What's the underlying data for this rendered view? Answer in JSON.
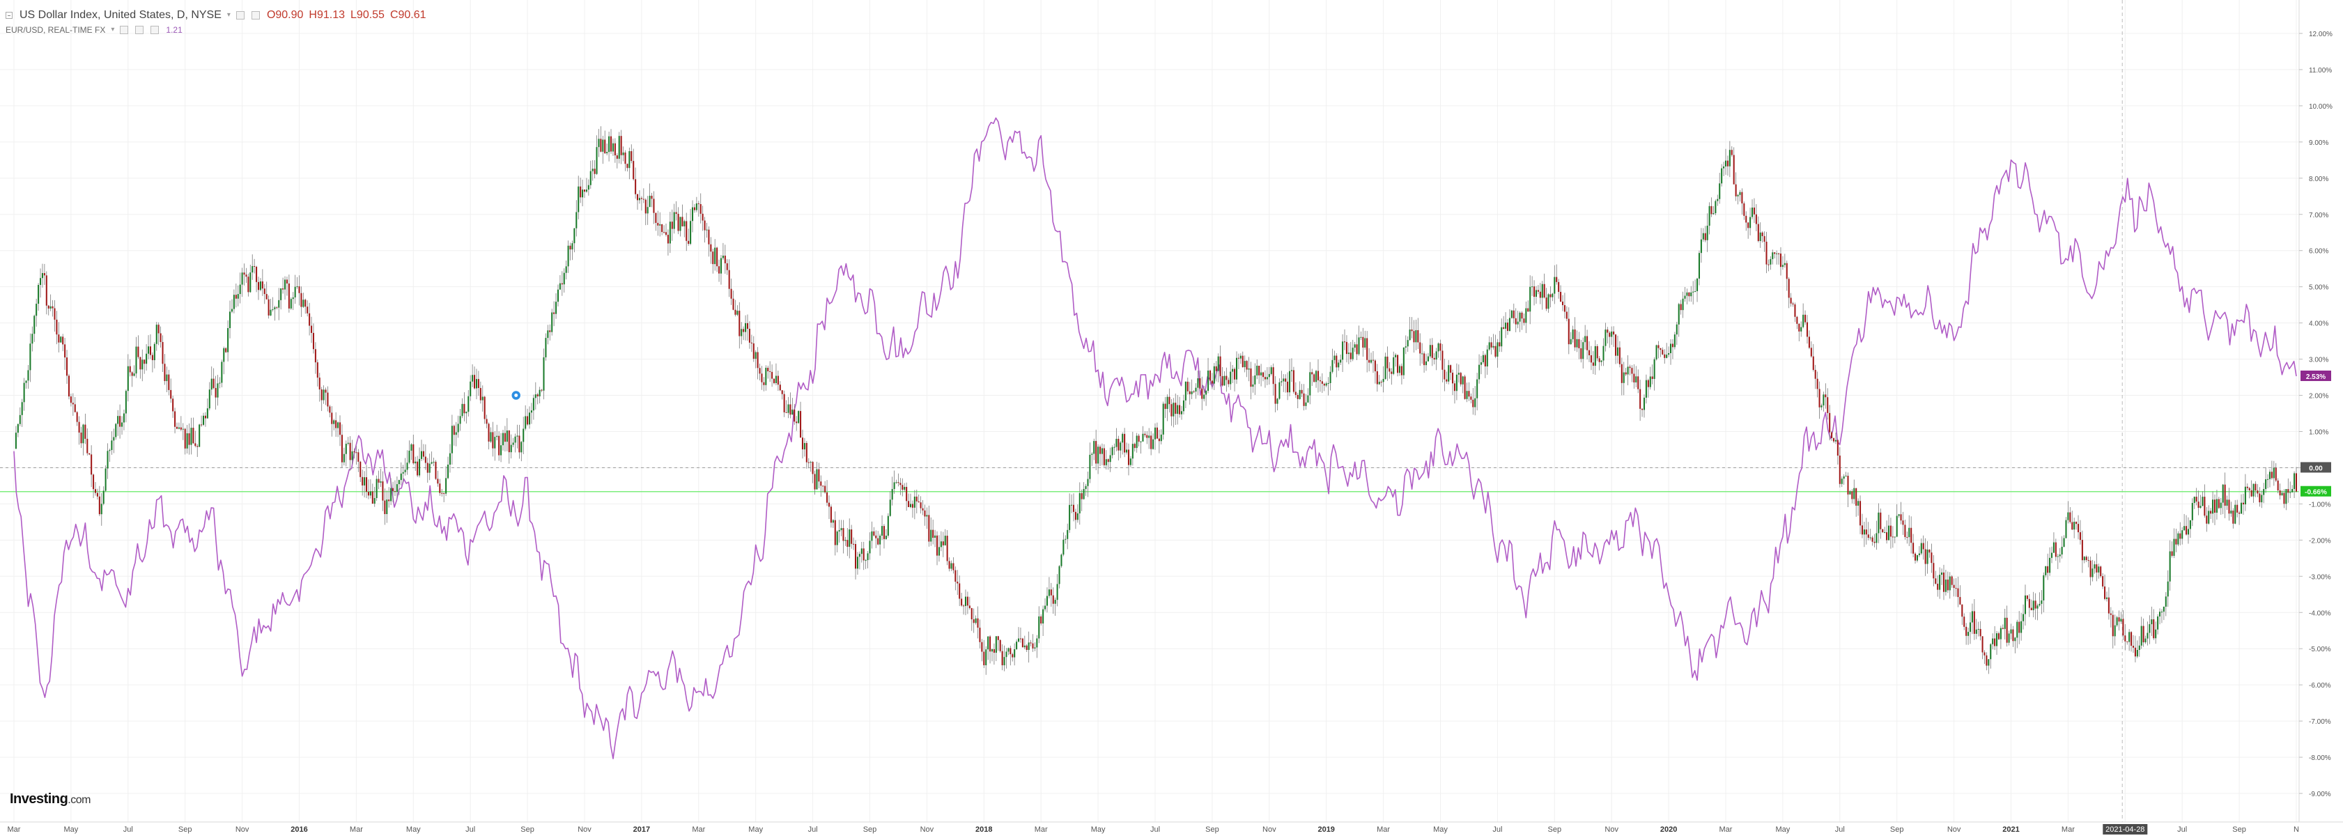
{
  "legend": {
    "main_series": {
      "name": "US Dollar Index, United States, D, NYSE",
      "open": "O90.90",
      "high": "H91.13",
      "low": "L90.55",
      "close": "C90.61"
    },
    "compare_series": {
      "name": "EUR/USD, REAL-TIME FX",
      "value": "1.21"
    }
  },
  "logo": {
    "text": "Investing",
    "suffix": ".com"
  },
  "colors": {
    "up_candle": "#1a7a2a",
    "down_candle": "#a01818",
    "compare_line": "#b05cc6",
    "last_price_line": "#7dee7d",
    "zero_line": "#999999",
    "grid": "#f0f0f0",
    "crosshair": "#bbbbbb",
    "compare_badge": "#8e2a8e",
    "last_badge": "#22c322",
    "zero_badge": "#555555"
  },
  "chart_data": {
    "type": "line",
    "percent_scale": true,
    "xlabel": "",
    "ylabel": "",
    "ylim": [
      -9.5,
      12.5
    ],
    "y_ticks": [
      "12.00%",
      "11.00%",
      "10.00%",
      "9.00%",
      "8.00%",
      "7.00%",
      "6.00%",
      "5.00%",
      "4.00%",
      "3.00%",
      "2.00%",
      "1.00%",
      "0.00",
      "-1.00%",
      "-2.00%",
      "-3.00%",
      "-4.00%",
      "-5.00%",
      "-6.00%",
      "-7.00%",
      "-8.00%",
      "-9.00%"
    ],
    "y_tick_values": [
      12,
      11,
      10,
      9,
      8,
      7,
      6,
      5,
      4,
      3,
      2,
      1,
      0,
      -1,
      -2,
      -3,
      -4,
      -5,
      -6,
      -7,
      -8,
      -9
    ],
    "x_ticks": [
      "Mar",
      "May",
      "Jul",
      "Sep",
      "Nov",
      "2016",
      "Mar",
      "May",
      "Jul",
      "Sep",
      "Nov",
      "2017",
      "Mar",
      "May",
      "Jul",
      "Sep",
      "Nov",
      "2018",
      "Mar",
      "May",
      "Jul",
      "Sep",
      "Nov",
      "2019",
      "Mar",
      "May",
      "Jul",
      "Sep",
      "Nov",
      "2020",
      "Mar",
      "May",
      "Jul",
      "Sep",
      "Nov",
      "2021",
      "Mar",
      "2021-04-28",
      "Jul",
      "Sep",
      "N"
    ],
    "x_start": "2015-03",
    "x_end": "2021-11",
    "crosshair_label": "2021-04-28",
    "badges": {
      "compare_last": "2.53%",
      "zero": "0.00",
      "main_last": "-0.66%"
    },
    "series": [
      {
        "name": "US Dollar Index, United States, D, NYSE",
        "style": "candlestick",
        "x": [
          "2015-03",
          "2015-04",
          "2015-05",
          "2015-06",
          "2015-07",
          "2015-08",
          "2015-09",
          "2015-10",
          "2015-11",
          "2015-12",
          "2016-01",
          "2016-02",
          "2016-03",
          "2016-04",
          "2016-05",
          "2016-06",
          "2016-07",
          "2016-08",
          "2016-09",
          "2016-10",
          "2016-11",
          "2016-12",
          "2017-01",
          "2017-02",
          "2017-03",
          "2017-04",
          "2017-05",
          "2017-06",
          "2017-07",
          "2017-08",
          "2017-09",
          "2017-10",
          "2017-11",
          "2017-12",
          "2018-01",
          "2018-02",
          "2018-03",
          "2018-04",
          "2018-05",
          "2018-06",
          "2018-07",
          "2018-08",
          "2018-09",
          "2018-10",
          "2018-11",
          "2018-12",
          "2019-01",
          "2019-02",
          "2019-03",
          "2019-04",
          "2019-05",
          "2019-06",
          "2019-07",
          "2019-08",
          "2019-09",
          "2019-10",
          "2019-11",
          "2019-12",
          "2020-01",
          "2020-02",
          "2020-03",
          "2020-04",
          "2020-05",
          "2020-06",
          "2020-07",
          "2020-08",
          "2020-09",
          "2020-10",
          "2020-11",
          "2020-12",
          "2021-01",
          "2021-02",
          "2021-03",
          "2021-04",
          "2021-05",
          "2021-06",
          "2021-07",
          "2021-08",
          "2021-09",
          "2021-10",
          "2021-11"
        ],
        "values": [
          0.5,
          5.5,
          2.0,
          -1.0,
          2.5,
          3.5,
          0.5,
          2.0,
          5.5,
          4.5,
          5.0,
          1.5,
          0.0,
          -1.0,
          0.5,
          -0.5,
          2.5,
          0.5,
          1.0,
          4.5,
          8.0,
          9.2,
          7.5,
          6.5,
          7.0,
          5.0,
          3.0,
          2.0,
          0.0,
          -2.0,
          -2.5,
          -0.5,
          -1.5,
          -3.0,
          -5.0,
          -5.2,
          -4.5,
          -1.5,
          0.5,
          0.5,
          1.0,
          2.0,
          2.5,
          2.8,
          2.5,
          2.0,
          2.5,
          3.5,
          2.5,
          3.5,
          3.0,
          2.0,
          3.5,
          4.5,
          5.0,
          3.0,
          3.5,
          2.0,
          3.5,
          5.5,
          8.5,
          6.5,
          5.5,
          3.0,
          0.0,
          -2.0,
          -1.5,
          -2.5,
          -3.5,
          -5.0,
          -4.5,
          -3.5,
          -1.5,
          -3.0,
          -4.8,
          -4.5,
          -1.5,
          -1.0,
          -1.2,
          -0.3,
          -0.66
        ]
      },
      {
        "name": "EUR/USD, REAL-TIME FX",
        "style": "line",
        "x": [
          "2015-03",
          "2015-04",
          "2015-05",
          "2015-06",
          "2015-07",
          "2015-08",
          "2015-09",
          "2015-10",
          "2015-11",
          "2015-12",
          "2016-01",
          "2016-02",
          "2016-03",
          "2016-04",
          "2016-05",
          "2016-06",
          "2016-07",
          "2016-08",
          "2016-09",
          "2016-10",
          "2016-11",
          "2016-12",
          "2017-01",
          "2017-02",
          "2017-03",
          "2017-04",
          "2017-05",
          "2017-06",
          "2017-07",
          "2017-08",
          "2017-09",
          "2017-10",
          "2017-11",
          "2017-12",
          "2018-01",
          "2018-02",
          "2018-03",
          "2018-04",
          "2018-05",
          "2018-06",
          "2018-07",
          "2018-08",
          "2018-09",
          "2018-10",
          "2018-11",
          "2018-12",
          "2019-01",
          "2019-02",
          "2019-03",
          "2019-04",
          "2019-05",
          "2019-06",
          "2019-07",
          "2019-08",
          "2019-09",
          "2019-10",
          "2019-11",
          "2019-12",
          "2020-01",
          "2020-02",
          "2020-03",
          "2020-04",
          "2020-05",
          "2020-06",
          "2020-07",
          "2020-08",
          "2020-09",
          "2020-10",
          "2020-11",
          "2020-12",
          "2021-01",
          "2021-02",
          "2021-03",
          "2021-04",
          "2021-05",
          "2021-06",
          "2021-07",
          "2021-08",
          "2021-09",
          "2021-10",
          "2021-11"
        ],
        "values": [
          0.0,
          -6.5,
          -1.5,
          -3.0,
          -3.5,
          -1.0,
          -2.0,
          -1.5,
          -5.5,
          -4.0,
          -3.5,
          -1.5,
          0.5,
          0.0,
          -1.0,
          -1.5,
          -2.0,
          -1.0,
          -1.0,
          -4.0,
          -6.5,
          -7.5,
          -6.0,
          -5.5,
          -6.5,
          -5.5,
          -2.5,
          0.5,
          3.0,
          5.5,
          4.5,
          3.0,
          4.5,
          5.5,
          9.5,
          9.0,
          8.5,
          5.0,
          2.5,
          2.0,
          2.5,
          3.0,
          2.5,
          1.5,
          0.5,
          0.5,
          0.0,
          0.0,
          -1.0,
          -0.5,
          0.5,
          0.0,
          -2.0,
          -3.5,
          -2.0,
          -2.5,
          -2.0,
          -1.5,
          -3.5,
          -5.5,
          -4.0,
          -4.5,
          -2.0,
          1.0,
          1.0,
          5.0,
          4.5,
          4.5,
          3.5,
          6.5,
          8.5,
          7.0,
          6.0,
          5.0,
          7.5,
          7.0,
          5.0,
          4.0,
          4.0,
          3.5,
          2.53
        ]
      }
    ],
    "annotations": []
  }
}
